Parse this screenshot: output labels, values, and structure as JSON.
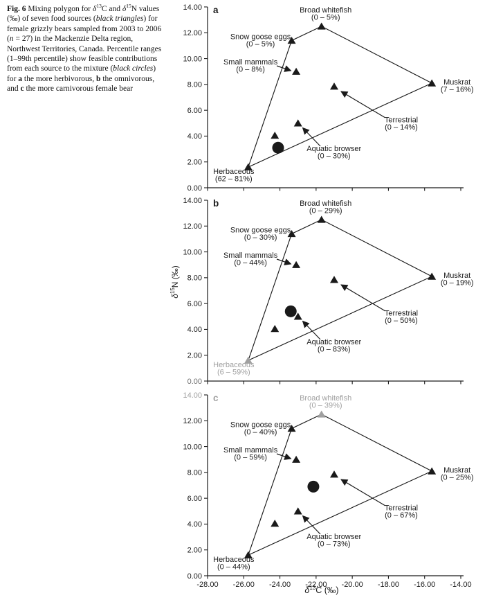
{
  "caption": {
    "segments": [
      {
        "text": "Fig. 6",
        "bold": true
      },
      {
        "text": " Mixing polygon for "
      },
      {
        "text": "δ",
        "italic": true
      },
      {
        "text": "13",
        "sup": true
      },
      {
        "text": "C and "
      },
      {
        "text": "δ",
        "italic": true
      },
      {
        "text": "15",
        "sup": true
      },
      {
        "text": "N values (‰) of seven food sources ("
      },
      {
        "text": "black triangles",
        "italic": true
      },
      {
        "text": ") for female grizzly bears sampled from 2003 to 2006 ("
      },
      {
        "text": "n",
        "italic": true
      },
      {
        "text": " = 27) in the Mackenzie Delta region, Northwest Territories, Canada. Percentile ranges (1–99th percentile) show feasible contributions from each source to the mixture ("
      },
      {
        "text": "black circles",
        "italic": true
      },
      {
        "text": ") for "
      },
      {
        "text": "a",
        "bold": true
      },
      {
        "text": " the more herbivorous, "
      },
      {
        "text": "b",
        "bold": true
      },
      {
        "text": " the omnivorous, and "
      },
      {
        "text": "c",
        "bold": true
      },
      {
        "text": " the more carnivorous female bear"
      }
    ]
  },
  "axis_titles": {
    "x": {
      "sym": "δ",
      "sup": "13",
      "rest": "C (‰)"
    },
    "y": {
      "sym": "δ",
      "sup": "15",
      "rest": "N (‰)"
    }
  },
  "chart_data": {
    "type": "scatter",
    "xlabel": "δ13C (‰)",
    "ylabel": "δ15N (‰)",
    "xlim": [
      -28,
      -14
    ],
    "ylim": [
      0,
      14
    ],
    "x_tick_labels": [
      "-28.00",
      "-26.00",
      "-24.00",
      "-22.00",
      "-20.00",
      "-18.00",
      "-16.00",
      "-14.00"
    ],
    "y_tick_labels": [
      "14.00",
      "12.00",
      "10.00",
      "8.00",
      "6.00",
      "4.00",
      "2.00",
      "0.00"
    ],
    "colors": {
      "black": "#1a1a1a",
      "gray": "#a0a0a0"
    },
    "polygon_vertices": [
      "Herbaceous",
      "Snow goose eggs",
      "Broad whitefish",
      "Muskrat"
    ],
    "source_positions": {
      "Broad whitefish": [
        -21.7,
        12.5
      ],
      "Snow goose eggs": [
        -23.35,
        11.4
      ],
      "Small mammals": [
        -23.1,
        9.0
      ],
      "Muskrat": [
        -15.6,
        8.1
      ],
      "Terrestrial": [
        -21.0,
        7.85
      ],
      "Aquatic browser": [
        -23.0,
        5.0
      ],
      "Unlabeled source": [
        -24.28,
        4.05
      ],
      "Herbaceous": [
        -25.75,
        1.6
      ]
    },
    "panels": [
      {
        "panel": "a",
        "panel_label_color": "#1a1a1a",
        "ranges": {
          "Broad whitefish": "(0 – 5%)",
          "Snow goose eggs": "(0 – 5%)",
          "Small mammals": "(0 – 8%)",
          "Muskrat": "(7 – 16%)",
          "Terrestrial": "(0 – 14%)",
          "Aquatic browser": "(0 – 30%)",
          "Herbaceous": "(62 – 81%)"
        },
        "gray_sources": [],
        "mixture": [
          -24.1,
          3.1
        ],
        "show_x_tick_labels": false,
        "y_tick_overrides": {}
      },
      {
        "panel": "b",
        "panel_label_color": "#1a1a1a",
        "ranges": {
          "Broad whitefish": "(0 – 29%)",
          "Snow goose eggs": "(0 – 30%)",
          "Small mammals": "(0 – 44%)",
          "Muskrat": "(0 – 19%)",
          "Terrestrial": "(0 – 50%)",
          "Aquatic browser": "(0 – 83%)",
          "Herbaceous": "(6 – 59%)"
        },
        "gray_sources": [
          "Herbaceous"
        ],
        "mixture": [
          -23.4,
          5.4
        ],
        "show_x_tick_labels": false,
        "y_tick_overrides": {
          "0.00": "#6e6e6e"
        }
      },
      {
        "panel": "c",
        "panel_label_color": "#a0a0a0",
        "ranges": {
          "Broad whitefish": "(0 – 39%)",
          "Snow goose eggs": "(0 – 40%)",
          "Small mammals": "(0 – 59%)",
          "Muskrat": "(0 – 25%)",
          "Terrestrial": "(0 – 67%)",
          "Aquatic browser": "(0 – 73%)",
          "Herbaceous": "(0 – 44%)"
        },
        "gray_sources": [
          "Broad whitefish"
        ],
        "mixture": [
          -22.15,
          6.9
        ],
        "show_x_tick_labels": true,
        "y_tick_overrides": {
          "14.00": "#a0a0a0"
        }
      }
    ]
  }
}
